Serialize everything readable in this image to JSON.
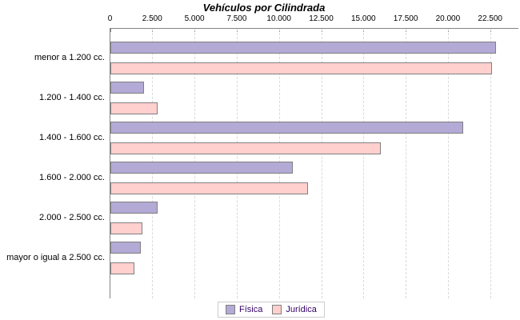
{
  "colors": {
    "fisica": "#b3aad6",
    "juridica": "#ffd0ce",
    "bar_border": "#808080",
    "axis": "#848484",
    "gridline": "#d9d9d9",
    "legend_border": "#cccccc",
    "legend_text": "#330066",
    "text": "#000000"
  },
  "chart_data": {
    "type": "bar",
    "orientation": "horizontal",
    "title": "Vehículos por Cilindrada",
    "categories": [
      "menor a 1.200 cc.",
      "1.200 - 1.400 cc.",
      "1.400 - 1.600 cc.",
      "1.600 - 2.000 cc.",
      "2.000 - 2.500 cc.",
      "mayor o igual a 2.500 cc."
    ],
    "series": [
      {
        "name": "Física",
        "color": "#b3aad6",
        "values": [
          22800,
          2000,
          20900,
          10800,
          2800,
          1800
        ]
      },
      {
        "name": "Jurídica",
        "color": "#ffd0ce",
        "values": [
          22600,
          2800,
          16000,
          11700,
          1900,
          1400
        ]
      }
    ],
    "x_axis": {
      "min": 0,
      "max": 22500,
      "tick_step": 2500,
      "tick_labels": [
        "0",
        "2.500",
        "5.000",
        "7.500",
        "10.000",
        "12.500",
        "15.000",
        "17.500",
        "20.000",
        "22.500"
      ],
      "position": "top",
      "grid": "dashed"
    },
    "legend_position": "bottom",
    "ylim": [
      0,
      22500
    ]
  }
}
